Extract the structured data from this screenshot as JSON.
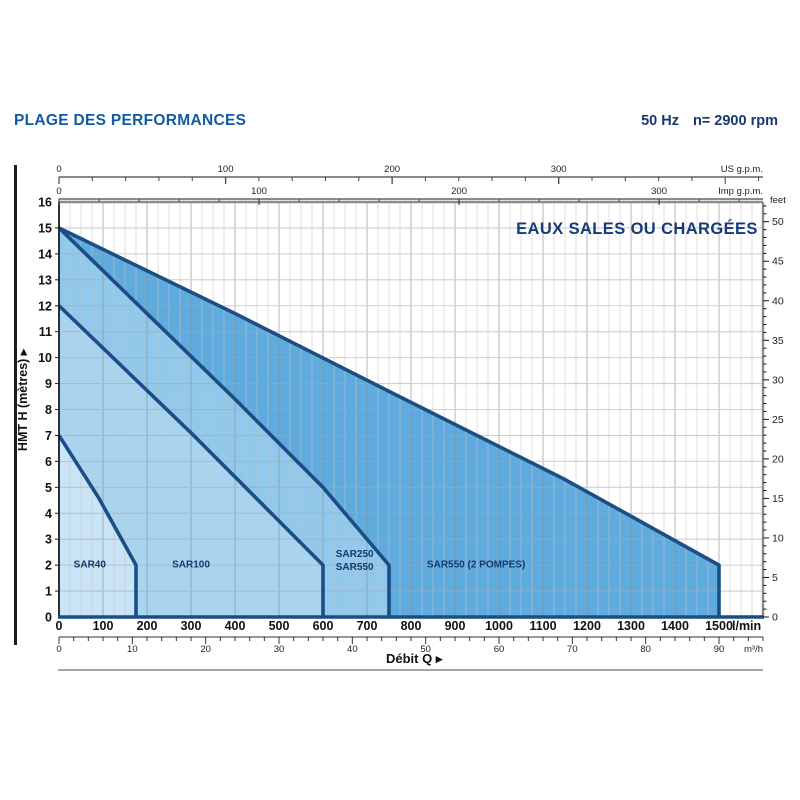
{
  "header": {
    "title": "PLAGE DES PERFORMANCES",
    "frequency": "50 Hz",
    "speed": "n= 2900 rpm"
  },
  "chart_data": {
    "type": "area",
    "annotation": "EAUX SALES OU CHARGÉES",
    "axis_ranges": {
      "q_lmin": [
        0,
        1600
      ],
      "h_m": [
        0,
        16
      ]
    },
    "x_axis": {
      "title": "Débit Q",
      "arrow": "▸",
      "primary_unit": "l/min",
      "primary_ticks": [
        0,
        100,
        200,
        300,
        400,
        500,
        600,
        700,
        800,
        900,
        1000,
        1100,
        1200,
        1300,
        1400,
        1500
      ],
      "primary_minor_step": 25,
      "secondary_unit": "m³/h",
      "secondary_ticks": [
        0,
        10,
        20,
        30,
        40,
        50,
        60,
        70,
        80,
        90
      ],
      "secondary_minor_step": 2,
      "lmin_per_m3h": 16.6667,
      "secondary_minor_max": 96
    },
    "y_axis": {
      "title": "HMT H (mètres)",
      "arrow": "▸",
      "ticks": [
        0,
        1,
        2,
        3,
        4,
        5,
        6,
        7,
        8,
        9,
        10,
        11,
        12,
        13,
        14,
        15,
        16
      ]
    },
    "right_axis": {
      "unit": "feet",
      "ticks": [
        0,
        5,
        10,
        15,
        20,
        25,
        30,
        35,
        40,
        45,
        50
      ],
      "minor_step": 1,
      "minor_max": 52,
      "m_per_foot": 0.3048
    },
    "top_axis_us": {
      "unit": "US g.p.m.",
      "ticks": [
        0,
        100,
        200,
        300
      ],
      "minor_step": 20,
      "minor_max": 420,
      "lmin_per_unit": 3.7854
    },
    "top_axis_imp": {
      "unit": "Imp g.p.m.",
      "ticks": [
        0,
        100,
        200,
        300
      ],
      "minor_step": 20,
      "minor_max": 350,
      "lmin_per_unit": 4.5461
    },
    "series": [
      {
        "name": "SAR550 (2 POMPES)",
        "fill": "#5FABDD",
        "curve": [
          [
            0,
            15
          ],
          [
            400,
            11.7
          ],
          [
            750,
            8.7
          ],
          [
            1150,
            5.3
          ],
          [
            1500,
            2
          ]
        ],
        "cutoff_lmin": 1500,
        "label_lines": [
          "SAR550 (2 POMPES)"
        ],
        "label_q": 948,
        "label_h": 2.05
      },
      {
        "name": "SAR250 / SAR550",
        "fill": "#92C8EB",
        "curve": [
          [
            0,
            15
          ],
          [
            200,
            11.7
          ],
          [
            400,
            8.4
          ],
          [
            600,
            5.0
          ],
          [
            750,
            2
          ]
        ],
        "cutoff_lmin": 750,
        "label_lines": [
          "SAR250",
          "SAR550"
        ],
        "label_q": 672,
        "label_h": 2.2
      },
      {
        "name": "SAR100",
        "fill": "#A9D4F0",
        "curve": [
          [
            0,
            12
          ],
          [
            300,
            7.1
          ],
          [
            600,
            2
          ]
        ],
        "cutoff_lmin": 600,
        "label_lines": [
          "SAR100"
        ],
        "label_q": 300,
        "label_h": 2.05
      },
      {
        "name": "SAR40",
        "fill": "#C8E4F6",
        "curve": [
          [
            0,
            7
          ],
          [
            90,
            4.6
          ],
          [
            175,
            2
          ]
        ],
        "cutoff_lmin": 175,
        "label_lines": [
          "SAR40"
        ],
        "label_q": 70,
        "label_h": 2.05
      }
    ],
    "colors": {
      "curve_line": "#1A4E85",
      "annotation_text": "#163A78",
      "region_label_text": "#16386B",
      "bottom_border": "#1A4E85",
      "plot_border_gray": "#8C8C8C",
      "grid_minor": "#c6c6c6",
      "grid_major_v": "#8f8f8f",
      "grid_h": "#a8a8a8"
    },
    "legend_position": "none",
    "grid": true
  }
}
